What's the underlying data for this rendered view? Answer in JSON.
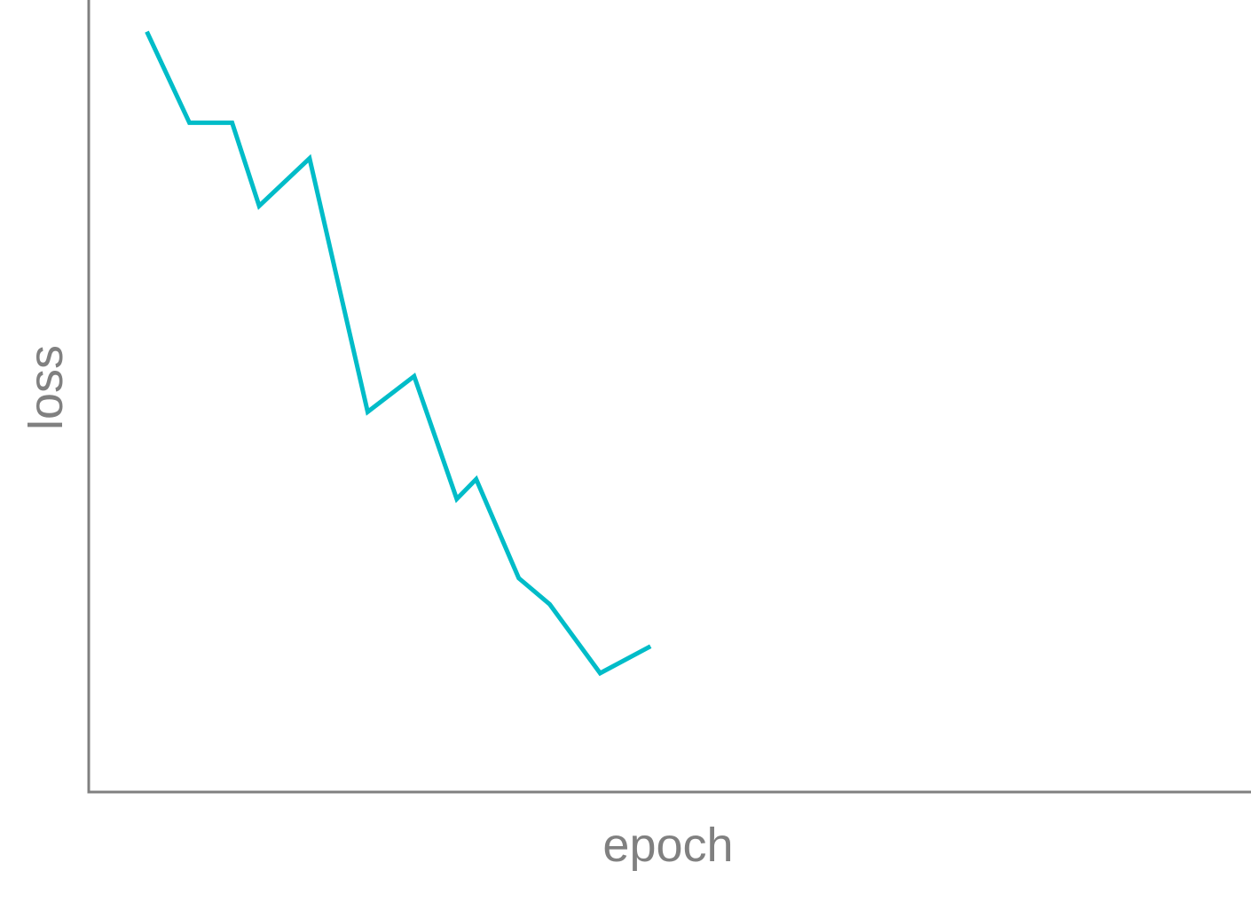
{
  "chart_data": {
    "type": "line",
    "xlabel": "epoch",
    "ylabel": "loss",
    "grid": false,
    "xlim": [
      0,
      30
    ],
    "ylim": [
      0,
      1
    ],
    "series": [
      {
        "color": "#00bcc8",
        "x": [
          1.5,
          2.6,
          3.7,
          4.4,
          5.7,
          7.2,
          8.4,
          9.5,
          10.0,
          11.1,
          11.9,
          13.2,
          14.5
        ],
        "y": [
          0.96,
          0.845,
          0.845,
          0.74,
          0.8,
          0.48,
          0.525,
          0.37,
          0.395,
          0.27,
          0.237,
          0.15,
          0.184
        ]
      }
    ],
    "colors": {
      "axis": "#808080",
      "background": "#ffffff"
    }
  }
}
